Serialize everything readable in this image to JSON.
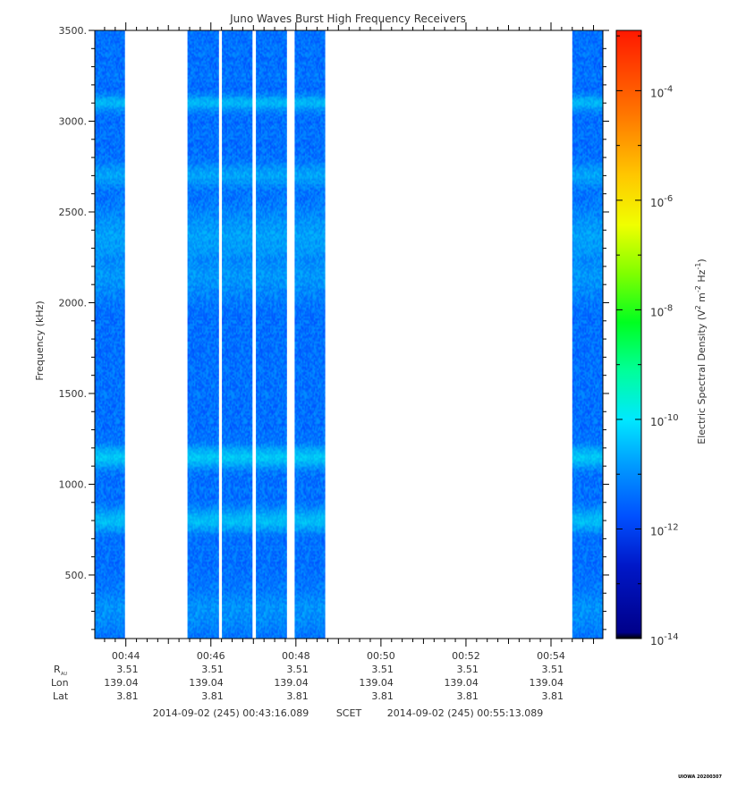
{
  "chart_data": {
    "type": "heatmap",
    "title": "Juno Waves Burst High Frequency Receivers",
    "ylabel": "Frequency (kHz)",
    "ylim": [
      150,
      3500
    ],
    "y_ticks": [
      500,
      1000,
      1500,
      2000,
      2500,
      3000,
      3500
    ],
    "y_tick_labels": [
      "500.",
      "1000.",
      "1500.",
      "2000.",
      "2500.",
      "3000.",
      "3500."
    ],
    "x_range_minutes": [
      43.27,
      55.22
    ],
    "x_ticks": [
      44,
      46,
      48,
      50,
      52,
      54
    ],
    "x_tick_labels": [
      "00:44",
      "00:46",
      "00:48",
      "00:50",
      "00:52",
      "00:54"
    ],
    "data_intervals_minutes": [
      [
        43.27,
        43.98
      ],
      [
        45.45,
        46.19
      ],
      [
        46.26,
        46.98
      ],
      [
        47.06,
        47.79
      ],
      [
        47.97,
        48.69
      ],
      [
        54.5,
        55.22
      ]
    ],
    "emission_bands_khz": [
      {
        "center": 3100,
        "width": 40,
        "strength": 0.75
      },
      {
        "center": 2700,
        "width": 60,
        "strength": 0.55
      },
      {
        "center": 2350,
        "width": 150,
        "strength": 0.5
      },
      {
        "center": 2150,
        "width": 120,
        "strength": 0.4
      },
      {
        "center": 1150,
        "width": 60,
        "strength": 0.9
      },
      {
        "center": 800,
        "width": 60,
        "strength": 0.85
      },
      {
        "center": 300,
        "width": 100,
        "strength": 0.35
      }
    ],
    "colorbar": {
      "label_parts": [
        "Electric Spectral Density (V",
        "2",
        " m",
        "-2",
        " Hz",
        "-1",
        ")"
      ],
      "log_min": -14,
      "log_max": -2.9,
      "major_ticks": [
        -14,
        -12,
        -10,
        -8,
        -6,
        -4
      ],
      "tick_base": "10",
      "tick_exponents": [
        "-14",
        "-12",
        "-10",
        "-8",
        "-6",
        "-4"
      ]
    },
    "ephemeris": {
      "row_labels": [
        "R",
        "Lon",
        "Lat"
      ],
      "r_subscript": "AU",
      "columns": [
        {
          "r": "3.51",
          "lon": "139.04",
          "lat": "3.81"
        },
        {
          "r": "3.51",
          "lon": "139.04",
          "lat": "3.81"
        },
        {
          "r": "3.51",
          "lon": "139.04",
          "lat": "3.81"
        },
        {
          "r": "3.51",
          "lon": "139.04",
          "lat": "3.81"
        },
        {
          "r": "3.51",
          "lon": "139.04",
          "lat": "3.81"
        },
        {
          "r": "3.51",
          "lon": "139.04",
          "lat": "3.81"
        }
      ]
    },
    "time_range": {
      "start": "2014-09-02 (245) 00:43:16.089",
      "system": "SCET",
      "end": "2014-09-02 (245) 00:55:13.089"
    },
    "grid": false
  },
  "credit": "UIOWA 20200307"
}
